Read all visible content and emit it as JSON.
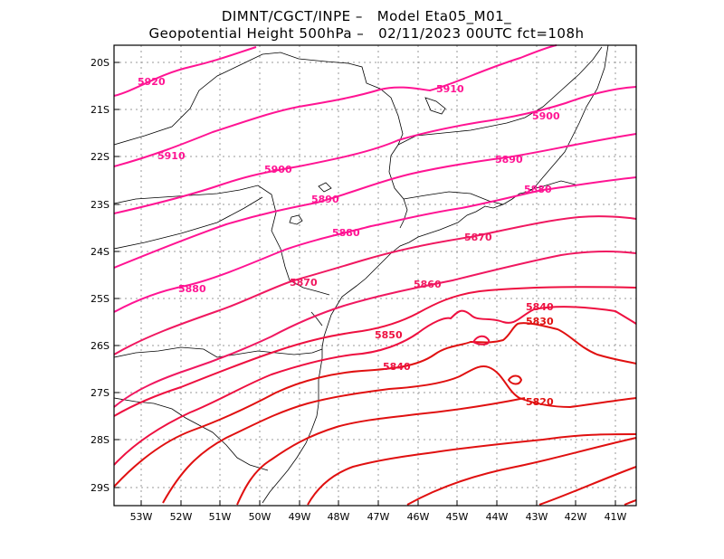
{
  "title_line1": "DIMNT/CGCT/INPE –   Model Eta05_M01_",
  "title_line2": "Geopotential Height 500hPa –   02/11/2023 00UTC fct=108h",
  "lat_ticks": [
    "20S",
    "21S",
    "22S",
    "23S",
    "24S",
    "25S",
    "26S",
    "27S",
    "28S",
    "29S"
  ],
  "lon_ticks": [
    "53W",
    "52W",
    "51W",
    "50W",
    "49W",
    "48W",
    "47W",
    "46W",
    "45W",
    "44W",
    "43W",
    "42W",
    "41W"
  ],
  "contour_labels": [
    "5920",
    "5910",
    "5910",
    "5900",
    "5900",
    "5890",
    "5890",
    "5880",
    "5880",
    "5880",
    "5870",
    "5870",
    "5860",
    "5850",
    "5840",
    "5840",
    "5830",
    "5820"
  ],
  "colors": {
    "high": "#ff1493",
    "mid": "#ee1040",
    "low": "#e01010",
    "grid": "#9a9a9a",
    "coast": "#000000"
  }
}
